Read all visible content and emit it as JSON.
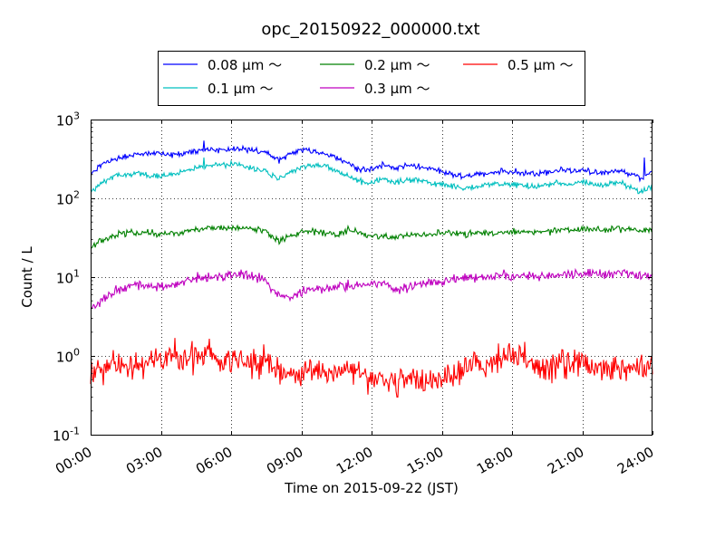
{
  "chart_data": {
    "type": "line",
    "title": "opc_20150922_000000.txt",
    "xlabel": "Time on 2015-09-22 (JST)",
    "ylabel": "Count / L",
    "y_scale": "log",
    "ylim": [
      0.1,
      1000
    ],
    "xlim": [
      "00:00",
      "24:00"
    ],
    "x_ticks": [
      "00:00",
      "03:00",
      "06:00",
      "09:00",
      "12:00",
      "15:00",
      "18:00",
      "21:00",
      "24:00"
    ],
    "y_ticks": [
      {
        "value": 0.1,
        "base": "10",
        "exp": "-1"
      },
      {
        "value": 1,
        "base": "10",
        "exp": "0"
      },
      {
        "value": 10,
        "base": "10",
        "exp": "1"
      },
      {
        "value": 100,
        "base": "10",
        "exp": "2"
      },
      {
        "value": 1000,
        "base": "10",
        "exp": "3"
      }
    ],
    "grid": true,
    "legend_position": "top-center, above plot",
    "x_hours": [
      0,
      0.5,
      1,
      1.5,
      2,
      2.5,
      3,
      3.5,
      4,
      4.5,
      5,
      5.5,
      6,
      6.5,
      7,
      7.5,
      8,
      8.5,
      9,
      9.5,
      10,
      10.5,
      11,
      11.5,
      12,
      12.5,
      13,
      13.5,
      14,
      14.5,
      15,
      15.5,
      16,
      16.5,
      17,
      17.5,
      18,
      18.5,
      19,
      19.5,
      20,
      20.5,
      21,
      21.5,
      22,
      22.5,
      23,
      23.5,
      24
    ],
    "series": [
      {
        "name": "0.08 μm ～",
        "color": "#0000ff",
        "noise": 0.018,
        "values": [
          200,
          270,
          320,
          340,
          360,
          370,
          360,
          360,
          380,
          400,
          420,
          410,
          420,
          420,
          400,
          380,
          300,
          370,
          420,
          400,
          370,
          330,
          280,
          230,
          230,
          270,
          240,
          260,
          250,
          240,
          220,
          200,
          190,
          200,
          210,
          220,
          220,
          210,
          200,
          210,
          230,
          220,
          230,
          210,
          210,
          230,
          200,
          180,
          220
        ],
        "spikes": [
          [
            4.85,
            540
          ],
          [
            23.65,
            330
          ]
        ]
      },
      {
        "name": "0.1 μm ～",
        "color": "#00bfbf",
        "noise": 0.018,
        "values": [
          120,
          160,
          190,
          200,
          210,
          200,
          190,
          200,
          220,
          240,
          260,
          260,
          270,
          260,
          240,
          220,
          170,
          210,
          240,
          270,
          260,
          220,
          190,
          160,
          160,
          180,
          160,
          170,
          170,
          160,
          150,
          140,
          130,
          140,
          150,
          150,
          150,
          150,
          140,
          150,
          155,
          150,
          160,
          150,
          150,
          160,
          140,
          125,
          145
        ],
        "spikes": [
          [
            4.85,
            330
          ],
          [
            23.4,
            115
          ]
        ]
      },
      {
        "name": "0.2 μm ～",
        "color": "#008000",
        "noise": 0.02,
        "values": [
          23,
          30,
          34,
          36,
          37,
          37,
          35,
          36,
          38,
          40,
          42,
          41,
          42,
          42,
          40,
          38,
          28,
          33,
          37,
          38,
          36,
          34,
          40,
          36,
          33,
          33,
          32,
          34,
          35,
          35,
          36,
          36,
          35,
          36,
          36,
          37,
          38,
          38,
          38,
          38,
          39,
          40,
          40,
          41,
          40,
          42,
          40,
          39,
          40
        ],
        "spikes": []
      },
      {
        "name": "0.3 μm ～",
        "color": "#bf00bf",
        "noise": 0.03,
        "values": [
          4,
          5,
          6.5,
          7.5,
          8,
          8,
          7.5,
          8,
          9,
          9.5,
          10,
          10,
          11,
          10.5,
          10,
          9,
          6,
          5.5,
          6.5,
          7,
          7,
          7.5,
          7.8,
          8,
          8.5,
          8.5,
          7,
          7.5,
          8,
          8.5,
          9,
          9,
          10,
          10,
          10,
          10.5,
          10.5,
          10.5,
          10,
          10.5,
          11,
          11,
          11,
          11.5,
          11,
          11.5,
          11,
          10.5,
          11
        ],
        "spikes": []
      },
      {
        "name": "0.5 μm ～",
        "color": "#ff0000",
        "noise": 0.09,
        "values": [
          0.55,
          0.7,
          0.8,
          0.8,
          0.8,
          0.85,
          0.9,
          1.0,
          1.0,
          0.95,
          1.0,
          0.95,
          0.9,
          0.9,
          0.85,
          0.8,
          0.6,
          0.6,
          0.65,
          0.7,
          0.6,
          0.65,
          0.55,
          0.55,
          0.5,
          0.55,
          0.45,
          0.5,
          0.45,
          0.5,
          0.55,
          0.65,
          0.7,
          0.75,
          0.8,
          0.85,
          1.0,
          0.95,
          0.8,
          0.75,
          0.8,
          0.85,
          0.8,
          0.75,
          0.75,
          0.7,
          0.7,
          0.7,
          0.75
        ],
        "spikes": [
          [
            7.4,
            1.4
          ],
          [
            18.3,
            1.35
          ],
          [
            13.1,
            0.3
          ]
        ]
      }
    ]
  }
}
